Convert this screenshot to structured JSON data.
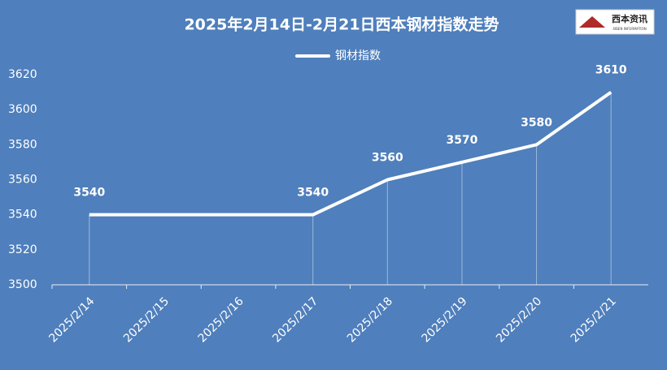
{
  "chart_data": {
    "type": "line",
    "title": "2025年2月14日-2月21日西本钢材指数走势",
    "logo": {
      "text": "西本资讯",
      "subtitle": "XIBEN INFORMATION"
    },
    "xticks": [
      "2025/2/14",
      "2025/2/15",
      "2025/2/16",
      "2025/2/17",
      "2025/2/18",
      "2025/2/19",
      "2025/2/20",
      "2025/2/21"
    ],
    "series": [
      {
        "name": "钢材指数",
        "color": "#ffffff",
        "x": [
          "2025/2/14",
          "2025/2/17",
          "2025/2/18",
          "2025/2/19",
          "2025/2/20",
          "2025/2/21"
        ],
        "values": [
          3540,
          3540,
          3560,
          3570,
          3580,
          3610
        ]
      }
    ],
    "ylim": [
      3500,
      3620
    ],
    "yticks": [
      3500,
      3520,
      3540,
      3560,
      3580,
      3600,
      3620
    ],
    "legend": "top",
    "drop_lines": true
  }
}
